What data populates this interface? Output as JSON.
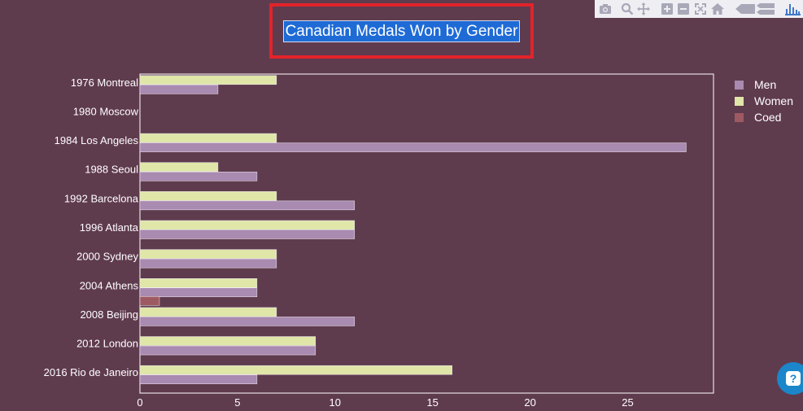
{
  "title": "Canadian Medals Won by Gender",
  "modebar": {
    "icons": [
      "camera-icon",
      "zoom-icon",
      "pan-icon",
      "zoom-in-icon",
      "zoom-out-icon",
      "autoscale-icon",
      "reset-axes-icon",
      "spike-lines-icon",
      "compare-hover-icon",
      "plotly-logo-icon"
    ]
  },
  "help_label": "?",
  "colors": {
    "background": "#5f3b4e",
    "Men": "#a98ab0",
    "Women": "#dfe6a8",
    "Coed": "#9e5a62",
    "bar_outline": "#f3eef5"
  },
  "chart_data": {
    "type": "bar",
    "orientation": "horizontal",
    "title": "Canadian Medals Won by Gender",
    "categories": [
      "1976 Montreal",
      "1980 Moscow",
      "1984 Los Angeles",
      "1988 Seoul",
      "1992 Barcelona",
      "1996 Atlanta",
      "2000 Sydney",
      "2004 Athens",
      "2008 Beijing",
      "2012 London",
      "2016 Rio de Janeiro"
    ],
    "series": [
      {
        "name": "Men",
        "values": [
          4,
          0,
          28,
          6,
          11,
          11,
          7,
          6,
          11,
          9,
          6
        ]
      },
      {
        "name": "Women",
        "values": [
          7,
          0,
          7,
          4,
          7,
          11,
          7,
          6,
          7,
          9,
          16
        ]
      },
      {
        "name": "Coed",
        "values": [
          0,
          0,
          0,
          0,
          0,
          0,
          0,
          1,
          0,
          0,
          0
        ]
      }
    ],
    "xlim": [
      0,
      29.4
    ],
    "xticks": [
      0,
      5,
      10,
      15,
      20,
      25
    ],
    "xlabel": "",
    "ylabel": "",
    "grid": false,
    "legend": "top-right"
  }
}
